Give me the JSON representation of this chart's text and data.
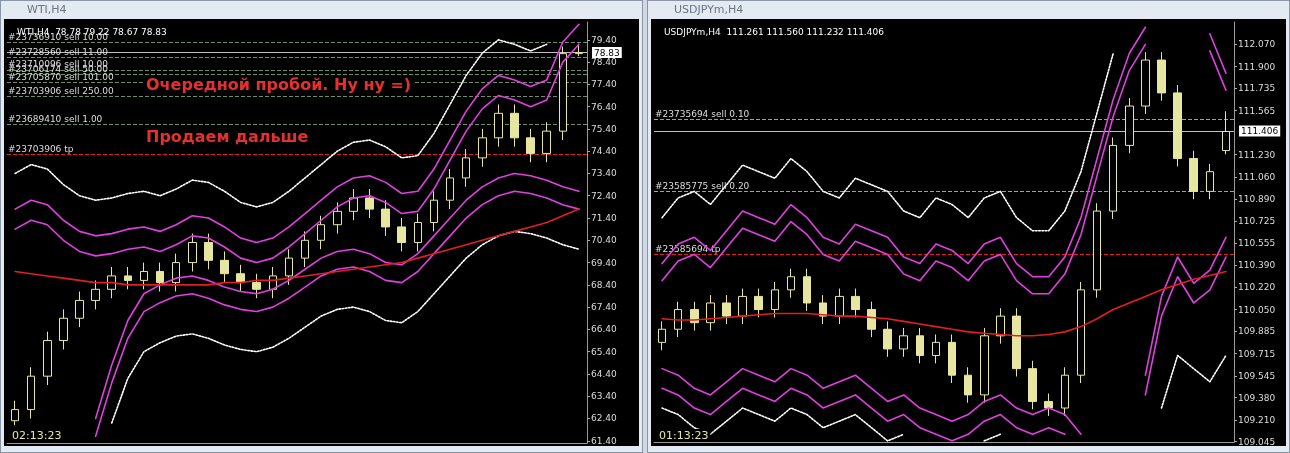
{
  "chart_data": [
    {
      "type": "candlestick",
      "title": "WTI,H4",
      "subtitle": "WTI,H4  78.78 79.22 78.67 78.83",
      "marker": "none",
      "categories": [
        null,
        null,
        null,
        null,
        null,
        null,
        null,
        null,
        null,
        null,
        null,
        null,
        null,
        null,
        null,
        null,
        null,
        null,
        null,
        null,
        null,
        null,
        null,
        null,
        null,
        null,
        null,
        null,
        null,
        null,
        null,
        null,
        null,
        null,
        null,
        null
      ],
      "ylim": [
        61.3,
        80.2
      ],
      "yticks": [
        {
          "value": 61.4,
          "label": "61.40"
        },
        {
          "value": 62.4,
          "label": "62.40"
        },
        {
          "value": 63.4,
          "label": "63.40"
        },
        {
          "value": 64.4,
          "label": "64.40"
        },
        {
          "value": 65.4,
          "label": "65.40"
        },
        {
          "value": 66.4,
          "label": "66.40"
        },
        {
          "value": 67.4,
          "label": "67.40"
        },
        {
          "value": 68.4,
          "label": "68.40"
        },
        {
          "value": 69.4,
          "label": "69.40"
        },
        {
          "value": 70.4,
          "label": "70.40"
        },
        {
          "value": 71.4,
          "label": "71.40"
        },
        {
          "value": 72.4,
          "label": "72.40"
        },
        {
          "value": 73.4,
          "label": "73.40"
        },
        {
          "value": 74.4,
          "label": "74.40"
        },
        {
          "value": 75.4,
          "label": "75.40"
        },
        {
          "value": 76.4,
          "label": "76.40"
        },
        {
          "value": 77.4,
          "label": "77.40"
        },
        {
          "value": 78.4,
          "label": "78.40"
        },
        {
          "value": 79.4,
          "label": "79.40"
        }
      ],
      "series": [
        {
          "type": "line",
          "color": "#ffffff",
          "line_style": "dotted",
          "values": [
            73.4,
            73.8,
            73.6,
            72.9,
            72.4,
            72.2,
            72.3,
            72.5,
            72.6,
            72.4,
            72.7,
            73.1,
            73.0,
            72.6,
            72.1,
            71.9,
            72.1,
            72.6,
            73.2,
            73.8,
            74.4,
            74.8,
            74.9,
            74.6,
            74.1,
            74.2,
            75.2,
            76.5,
            77.8,
            78.8,
            79.4,
            79.2,
            78.9,
            79.2,
            null,
            null
          ]
        },
        {
          "type": "line",
          "color": "#ffffff",
          "line_style": "dotted",
          "values": [
            null,
            null,
            null,
            null,
            null,
            null,
            62.2,
            64.2,
            65.4,
            65.8,
            66.1,
            66.2,
            66.0,
            65.7,
            65.5,
            65.4,
            65.6,
            66.0,
            66.5,
            67.0,
            67.3,
            67.4,
            67.2,
            66.8,
            66.7,
            67.2,
            68.0,
            68.8,
            69.6,
            70.2,
            70.6,
            70.8,
            70.7,
            70.5,
            70.2,
            70.0
          ]
        },
        {
          "type": "line",
          "color": "#e040e0",
          "line_style": "solid",
          "values": [
            71.8,
            72.2,
            72.0,
            71.3,
            70.8,
            70.6,
            70.7,
            70.9,
            71.0,
            70.8,
            71.1,
            71.5,
            71.4,
            71.0,
            70.5,
            70.3,
            70.5,
            71.0,
            71.6,
            72.2,
            72.8,
            73.2,
            73.3,
            73.0,
            72.5,
            72.6,
            73.6,
            74.9,
            76.2,
            77.2,
            77.8,
            77.6,
            77.3,
            77.6,
            79.3,
            80.1
          ]
        },
        {
          "type": "line",
          "color": "#e040e0",
          "line_style": "solid",
          "values": [
            70.9,
            71.3,
            71.1,
            70.4,
            69.9,
            69.7,
            69.8,
            70.0,
            70.1,
            69.9,
            70.2,
            70.6,
            70.5,
            70.1,
            69.6,
            69.4,
            69.6,
            70.1,
            70.7,
            71.3,
            71.9,
            72.3,
            72.4,
            72.1,
            71.6,
            71.7,
            72.7,
            74.0,
            75.3,
            76.3,
            76.9,
            76.7,
            76.4,
            76.7,
            78.4,
            79.2
          ]
        },
        {
          "type": "line",
          "color": "#e040e0",
          "line_style": "solid",
          "values": [
            null,
            null,
            null,
            null,
            null,
            62.4,
            64.8,
            66.8,
            68.0,
            68.4,
            68.7,
            68.8,
            68.6,
            68.3,
            68.1,
            68.0,
            68.2,
            68.6,
            69.1,
            69.6,
            69.9,
            70.0,
            69.8,
            69.4,
            69.3,
            69.8,
            70.6,
            71.4,
            72.2,
            72.8,
            73.2,
            73.4,
            73.3,
            73.1,
            72.8,
            72.6
          ]
        },
        {
          "type": "line",
          "color": "#e040e0",
          "line_style": "solid",
          "values": [
            null,
            null,
            null,
            null,
            null,
            61.6,
            64.0,
            66.0,
            67.2,
            67.6,
            67.9,
            68.0,
            67.8,
            67.5,
            67.3,
            67.2,
            67.4,
            67.8,
            68.3,
            68.8,
            69.1,
            69.2,
            69.0,
            68.6,
            68.5,
            69.0,
            69.8,
            70.6,
            71.4,
            72.0,
            72.4,
            72.6,
            72.5,
            72.3,
            72.0,
            71.8
          ]
        },
        {
          "type": "line",
          "color": "#e02020",
          "line_style": "solid",
          "values": [
            69.0,
            68.9,
            68.8,
            68.7,
            68.6,
            68.5,
            68.5,
            68.4,
            68.4,
            68.4,
            68.4,
            68.4,
            68.4,
            68.5,
            68.5,
            68.6,
            68.6,
            68.7,
            68.8,
            68.9,
            69.0,
            69.1,
            69.2,
            69.3,
            69.4,
            69.6,
            69.8,
            70.0,
            70.2,
            70.4,
            70.6,
            70.8,
            71.0,
            71.2,
            71.5,
            71.8
          ]
        },
        {
          "type": "candlestick",
          "color": "#e6e6a0",
          "ohlc": [
            [
              62.3,
              63.2,
              62.1,
              62.8
            ],
            [
              62.8,
              64.7,
              62.4,
              64.3
            ],
            [
              64.3,
              66.3,
              63.9,
              65.9
            ],
            [
              65.9,
              67.3,
              65.5,
              66.9
            ],
            [
              66.9,
              68.1,
              66.5,
              67.7
            ],
            [
              67.7,
              68.6,
              67.3,
              68.2
            ],
            [
              68.2,
              69.2,
              67.8,
              68.8
            ],
            [
              68.8,
              69.2,
              68.2,
              68.6
            ],
            [
              68.6,
              69.4,
              68.2,
              69.0
            ],
            [
              69.0,
              69.4,
              68.1,
              68.5
            ],
            [
              68.5,
              69.8,
              68.1,
              69.4
            ],
            [
              69.4,
              70.7,
              69.0,
              70.3
            ],
            [
              70.3,
              70.7,
              69.1,
              69.5
            ],
            [
              69.5,
              69.9,
              68.5,
              68.9
            ],
            [
              68.9,
              69.3,
              68.1,
              68.5
            ],
            [
              68.5,
              68.9,
              67.8,
              68.2
            ],
            [
              68.2,
              69.2,
              67.8,
              68.8
            ],
            [
              68.8,
              70.0,
              68.4,
              69.6
            ],
            [
              69.6,
              70.8,
              69.2,
              70.4
            ],
            [
              70.4,
              71.5,
              70.0,
              71.1
            ],
            [
              71.1,
              72.1,
              70.7,
              71.7
            ],
            [
              71.7,
              72.7,
              71.3,
              72.3
            ],
            [
              72.3,
              72.7,
              71.4,
              71.8
            ],
            [
              71.8,
              72.2,
              70.6,
              71.0
            ],
            [
              71.0,
              71.4,
              69.9,
              70.3
            ],
            [
              70.3,
              71.6,
              69.9,
              71.2
            ],
            [
              71.2,
              72.6,
              70.8,
              72.2
            ],
            [
              72.2,
              73.6,
              71.8,
              73.2
            ],
            [
              73.2,
              74.5,
              72.8,
              74.1
            ],
            [
              74.1,
              75.4,
              73.7,
              75.0
            ],
            [
              75.0,
              76.5,
              74.6,
              76.1
            ],
            [
              76.1,
              76.5,
              74.6,
              75.0
            ],
            [
              75.0,
              75.4,
              73.9,
              74.3
            ],
            [
              74.3,
              75.7,
              73.9,
              75.3
            ],
            [
              75.3,
              79.1,
              74.9,
              78.78
            ],
            [
              78.78,
              79.22,
              78.67,
              78.83
            ]
          ]
        }
      ],
      "ref_lines": [
        {
          "axis": "y",
          "value": 79.3,
          "label": "#23736910 sell 10.00",
          "color": "#6b8f6b",
          "line_style": "dashed"
        },
        {
          "axis": "y",
          "value": 78.6,
          "label": "#23728560 sell 11.00",
          "color": "#6b8f6b",
          "line_style": "dashed"
        },
        {
          "axis": "y",
          "value": 78.05,
          "label": "#23710096 sell 10.00",
          "color": "#6b8f6b",
          "line_style": "dashed"
        },
        {
          "axis": "y",
          "value": 77.85,
          "label": "#23706174 sell 50.00",
          "color": "#6b8f6b",
          "line_style": "dashed"
        },
        {
          "axis": "y",
          "value": 77.5,
          "label": "#23705870 sell 101.00",
          "color": "#6b8f6b",
          "line_style": "dashed"
        },
        {
          "axis": "y",
          "value": 76.85,
          "label": "#23703906 sell 250.00",
          "color": "#6b8f6b",
          "line_style": "dashed"
        },
        {
          "axis": "y",
          "value": 75.6,
          "label": "#23689410 sell 1.00",
          "color": "#6b8f6b",
          "line_style": "dashed"
        },
        {
          "axis": "y",
          "value": 74.25,
          "label": "#23703906 tp",
          "color": "#e02020",
          "line_style": "dashed"
        },
        {
          "axis": "y",
          "value": 78.83,
          "label": "78.83",
          "color": "#c0c0c0",
          "line_style": "solid"
        }
      ],
      "annotations": [
        "Очередной пробой. Ну ну =)",
        "Продаем дальше",
        "02:13:23"
      ]
    },
    {
      "type": "candlestick",
      "title": "USDJPYm,H4",
      "subtitle": "USDJPYm,H4  111.261 111.560 111.232 111.406",
      "marker": "none",
      "categories": [
        null,
        null,
        null,
        null,
        null,
        null,
        null,
        null,
        null,
        null,
        null,
        null,
        null,
        null,
        null,
        null,
        null,
        null,
        null,
        null,
        null,
        null,
        null,
        null,
        null,
        null,
        null,
        null,
        null,
        null,
        null,
        null,
        null,
        null,
        null,
        null
      ],
      "ylim": [
        109.04,
        112.24
      ],
      "yticks": [
        {
          "value": 109.045,
          "label": "109.045"
        },
        {
          "value": 109.21,
          "label": "109.210"
        },
        {
          "value": 109.38,
          "label": "109.380"
        },
        {
          "value": 109.545,
          "label": "109.545"
        },
        {
          "value": 109.715,
          "label": "109.715"
        },
        {
          "value": 109.885,
          "label": "109.885"
        },
        {
          "value": 110.05,
          "label": "110.050"
        },
        {
          "value": 110.22,
          "label": "110.220"
        },
        {
          "value": 110.39,
          "label": "110.390"
        },
        {
          "value": 110.555,
          "label": "110.555"
        },
        {
          "value": 110.725,
          "label": "110.725"
        },
        {
          "value": 110.89,
          "label": "110.890"
        },
        {
          "value": 111.06,
          "label": "111.060"
        },
        {
          "value": 111.23,
          "label": "111.230"
        },
        {
          "value": 111.565,
          "label": "111.565"
        },
        {
          "value": 111.735,
          "label": "111.735"
        },
        {
          "value": 111.9,
          "label": "111.900"
        },
        {
          "value": 112.07,
          "label": "112.070"
        }
      ],
      "series": [
        {
          "type": "line",
          "color": "#ffffff",
          "line_style": "dotted",
          "values": [
            110.75,
            110.9,
            110.95,
            110.85,
            111.0,
            111.15,
            111.1,
            111.05,
            111.2,
            111.1,
            110.95,
            110.9,
            111.05,
            111.0,
            110.95,
            110.8,
            110.75,
            110.9,
            110.85,
            110.75,
            110.9,
            110.95,
            110.75,
            110.65,
            110.65,
            110.8,
            111.1,
            111.55,
            112.0,
            null,
            null,
            null,
            null,
            null,
            null,
            null
          ]
        },
        {
          "type": "line",
          "color": "#ffffff",
          "line_style": "dotted",
          "values": [
            109.3,
            109.25,
            109.15,
            109.1,
            109.2,
            109.3,
            109.25,
            109.2,
            109.3,
            109.25,
            109.15,
            109.2,
            109.25,
            109.15,
            109.05,
            109.1,
            null,
            null,
            null,
            null,
            109.05,
            109.1,
            null,
            null,
            null,
            null,
            null,
            null,
            null,
            null,
            null,
            109.3,
            109.7,
            109.6,
            109.5,
            109.7
          ]
        },
        {
          "type": "line",
          "color": "#e040e0",
          "line_style": "solid",
          "values": [
            110.4,
            110.55,
            110.6,
            110.5,
            110.65,
            110.8,
            110.75,
            110.7,
            110.85,
            110.75,
            110.6,
            110.55,
            110.7,
            110.65,
            110.6,
            110.45,
            110.4,
            110.55,
            110.5,
            110.4,
            110.55,
            110.6,
            110.4,
            110.3,
            110.3,
            110.45,
            110.75,
            111.2,
            111.65,
            112.0,
            112.2,
            null,
            null,
            null,
            112.15,
            111.85
          ]
        },
        {
          "type": "line",
          "color": "#e040e0",
          "line_style": "solid",
          "values": [
            110.27,
            110.42,
            110.47,
            110.37,
            110.52,
            110.67,
            110.62,
            110.57,
            110.72,
            110.62,
            110.47,
            110.42,
            110.57,
            110.52,
            110.47,
            110.32,
            110.27,
            110.42,
            110.37,
            110.27,
            110.42,
            110.47,
            110.27,
            110.17,
            110.17,
            110.32,
            110.62,
            111.07,
            111.52,
            111.87,
            112.07,
            null,
            null,
            null,
            112.02,
            111.72
          ]
        },
        {
          "type": "line",
          "color": "#e040e0",
          "line_style": "solid",
          "values": [
            109.6,
            109.55,
            109.45,
            109.4,
            109.5,
            109.6,
            109.55,
            109.5,
            109.6,
            109.55,
            109.45,
            109.5,
            109.55,
            109.45,
            109.35,
            109.4,
            109.3,
            109.25,
            109.2,
            109.25,
            109.35,
            109.4,
            109.3,
            109.25,
            109.3,
            109.25,
            109.1,
            null,
            null,
            null,
            109.55,
            110.15,
            110.45,
            110.25,
            110.35,
            110.6
          ]
        },
        {
          "type": "line",
          "color": "#e040e0",
          "line_style": "solid",
          "values": [
            109.45,
            109.4,
            109.3,
            109.25,
            109.35,
            109.45,
            109.4,
            109.35,
            109.45,
            109.4,
            109.3,
            109.35,
            109.4,
            109.3,
            109.2,
            109.25,
            109.15,
            109.1,
            109.05,
            109.1,
            109.2,
            109.25,
            109.15,
            109.1,
            109.15,
            109.1,
            null,
            null,
            null,
            null,
            109.4,
            110.0,
            110.3,
            110.1,
            110.2,
            110.45
          ]
        },
        {
          "type": "line",
          "color": "#e02020",
          "line_style": "solid",
          "values": [
            109.98,
            109.97,
            109.97,
            109.98,
            109.99,
            110.0,
            110.01,
            110.02,
            110.02,
            110.02,
            110.01,
            110.0,
            110.0,
            109.99,
            109.98,
            109.96,
            109.94,
            109.92,
            109.9,
            109.88,
            109.87,
            109.86,
            109.85,
            109.85,
            109.86,
            109.88,
            109.92,
            109.98,
            110.05,
            110.1,
            110.15,
            110.2,
            110.24,
            110.28,
            110.31,
            110.34
          ]
        },
        {
          "type": "candlestick",
          "color": "#e6e6a0",
          "ohlc": [
            [
              109.8,
              109.96,
              109.74,
              109.9
            ],
            [
              109.9,
              110.11,
              109.84,
              110.05
            ],
            [
              110.05,
              110.11,
              109.89,
              109.95
            ],
            [
              109.95,
              110.16,
              109.89,
              110.1
            ],
            [
              110.1,
              110.16,
              109.94,
              110.0
            ],
            [
              110.0,
              110.21,
              109.94,
              110.15
            ],
            [
              110.15,
              110.21,
              109.99,
              110.05
            ],
            [
              110.05,
              110.26,
              109.99,
              110.2
            ],
            [
              110.2,
              110.36,
              110.14,
              110.3
            ],
            [
              110.3,
              110.36,
              110.04,
              110.1
            ],
            [
              110.1,
              110.16,
              109.94,
              110.0
            ],
            [
              110.0,
              110.21,
              109.94,
              110.15
            ],
            [
              110.15,
              110.21,
              109.99,
              110.05
            ],
            [
              110.05,
              110.11,
              109.84,
              109.9
            ],
            [
              109.9,
              109.96,
              109.69,
              109.75
            ],
            [
              109.75,
              109.91,
              109.69,
              109.85
            ],
            [
              109.85,
              109.91,
              109.64,
              109.7
            ],
            [
              109.7,
              109.86,
              109.64,
              109.8
            ],
            [
              109.8,
              109.86,
              109.49,
              109.55
            ],
            [
              109.55,
              109.61,
              109.34,
              109.4
            ],
            [
              109.4,
              109.91,
              109.34,
              109.85
            ],
            [
              109.85,
              110.06,
              109.79,
              110.0
            ],
            [
              110.0,
              110.06,
              109.54,
              109.6
            ],
            [
              109.6,
              109.66,
              109.29,
              109.35
            ],
            [
              109.35,
              109.41,
              109.24,
              109.3
            ],
            [
              109.3,
              109.61,
              109.24,
              109.55
            ],
            [
              109.55,
              110.26,
              109.49,
              110.2
            ],
            [
              110.2,
              110.86,
              110.14,
              110.8
            ],
            [
              110.8,
              111.36,
              110.74,
              111.3
            ],
            [
              111.3,
              111.66,
              111.24,
              111.6
            ],
            [
              111.6,
              112.01,
              111.54,
              111.95
            ],
            [
              111.95,
              112.01,
              111.64,
              111.7
            ],
            [
              111.7,
              111.76,
              111.14,
              111.2
            ],
            [
              111.2,
              111.26,
              110.89,
              110.95
            ],
            [
              110.95,
              111.16,
              110.89,
              111.1
            ],
            [
              111.261,
              111.56,
              111.232,
              111.406
            ]
          ]
        }
      ],
      "ref_lines": [
        {
          "axis": "y",
          "value": 111.495,
          "label": "#23735694 sell 0.10",
          "color": "#a0a0a0",
          "line_style": "dashed"
        },
        {
          "axis": "y",
          "value": 110.95,
          "label": "#23585775 sell 0.20",
          "color": "#a0a0a0",
          "line_style": "dashed"
        },
        {
          "axis": "y",
          "value": 110.466,
          "label": "#23585694 tp",
          "color": "#e02020",
          "line_style": "dashed"
        },
        {
          "axis": "y",
          "value": 111.406,
          "label": "111.406",
          "color": "#c0c0c0",
          "line_style": "solid"
        }
      ],
      "annotations": [
        "01:13:23"
      ]
    }
  ]
}
